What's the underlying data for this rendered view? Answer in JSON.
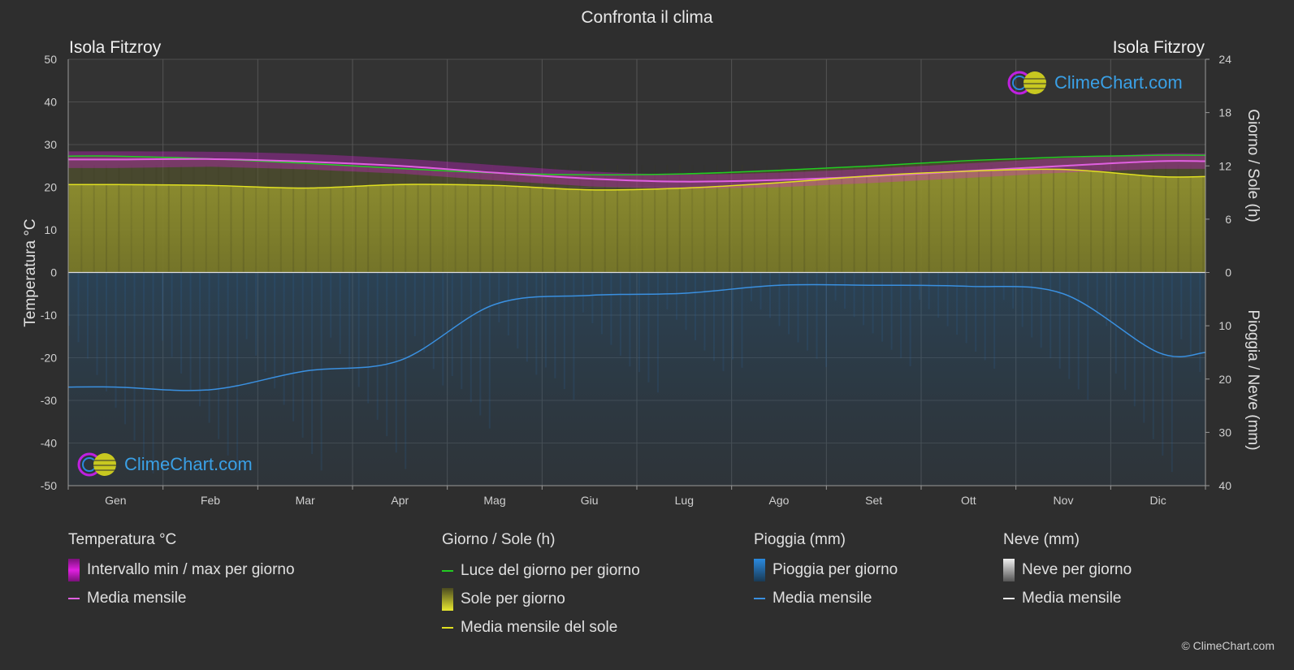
{
  "header": {
    "title": "Confronta il clima",
    "location_left": "Isola Fitzroy",
    "location_right": "Isola Fitzroy"
  },
  "logo": {
    "text": "ClimeChart.com"
  },
  "copyright": "© ClimeChart.com",
  "legend": {
    "groups": [
      {
        "title": "Temperatura °C",
        "items": [
          {
            "label": "Intervallo min / max per giorno",
            "swatch": "box",
            "color": "#e020e0"
          },
          {
            "label": "Media mensile",
            "swatch": "line",
            "color": "#e060e0"
          }
        ]
      },
      {
        "title": "Giorno / Sole (h)",
        "items": [
          {
            "label": "Luce del giorno per giorno",
            "swatch": "line",
            "color": "#22cc22"
          },
          {
            "label": "Sole per giorno",
            "swatch": "box",
            "color": "#d8d830"
          },
          {
            "label": "Media mensile del sole",
            "swatch": "line",
            "color": "#e0e020"
          }
        ]
      },
      {
        "title": "Pioggia (mm)",
        "items": [
          {
            "label": "Pioggia per giorno",
            "swatch": "box",
            "color": "#2a7fd0"
          },
          {
            "label": "Media mensile",
            "swatch": "line",
            "color": "#3a90e0"
          }
        ]
      },
      {
        "title": "Neve (mm)",
        "items": [
          {
            "label": "Neve per giorno",
            "swatch": "box",
            "color": "#e0e0e0"
          },
          {
            "label": "Media mensile",
            "swatch": "line",
            "color": "#f0f0f0"
          }
        ]
      }
    ]
  },
  "chart_data": {
    "type": "line",
    "categories": [
      "Gen",
      "Feb",
      "Mar",
      "Apr",
      "Mag",
      "Giu",
      "Lug",
      "Ago",
      "Set",
      "Ott",
      "Nov",
      "Dic"
    ],
    "y_left": {
      "label": "Temperatura °C",
      "range": [
        -50,
        50
      ],
      "ticks": [
        50,
        40,
        30,
        20,
        10,
        0,
        -10,
        -20,
        -30,
        -40,
        -50
      ]
    },
    "y_right_top": {
      "label": "Giorno / Sole (h)",
      "range": [
        0,
        24
      ],
      "ticks": [
        24,
        18,
        12,
        6,
        0
      ]
    },
    "y_right_bottom": {
      "label": "Pioggia / Neve (mm)",
      "range": [
        0,
        40
      ],
      "ticks": [
        0,
        10,
        20,
        30,
        40
      ]
    },
    "grid": true,
    "series": [
      {
        "name": "Luce del giorno per giorno",
        "axis": "sun_h",
        "color": "#22cc22",
        "values": [
          13.1,
          12.8,
          12.3,
          11.7,
          11.2,
          11.0,
          11.1,
          11.5,
          12.0,
          12.6,
          13.0,
          13.2
        ]
      },
      {
        "name": "Media mensile del sole",
        "axis": "sun_h",
        "color": "#e0e020",
        "values": [
          9.9,
          9.8,
          9.5,
          9.9,
          9.8,
          9.3,
          9.5,
          10.1,
          10.9,
          11.4,
          11.6,
          10.8
        ]
      },
      {
        "name": "Media mensile",
        "axis": "temp_c",
        "color": "#e060e0",
        "values": [
          26.5,
          26.6,
          26.0,
          25.0,
          23.4,
          22.0,
          21.3,
          21.7,
          22.6,
          23.8,
          25.0,
          26.1
        ]
      },
      {
        "name": "Media mensile",
        "axis": "rain_mm",
        "color": "#3a90e0",
        "values": [
          21.5,
          22.0,
          18.5,
          16.5,
          6.0,
          4.3,
          3.9,
          2.4,
          2.4,
          2.6,
          4.0,
          15.0
        ]
      }
    ],
    "temp_range_band": {
      "color": "#e020e0",
      "min": [
        24.5,
        24.8,
        24.2,
        23.2,
        21.6,
        20.2,
        19.6,
        20.0,
        21.0,
        22.2,
        23.4,
        24.3
      ],
      "max": [
        28.4,
        28.3,
        27.8,
        26.7,
        25.2,
        23.7,
        23.0,
        23.4,
        24.4,
        25.6,
        26.8,
        27.9
      ]
    }
  }
}
